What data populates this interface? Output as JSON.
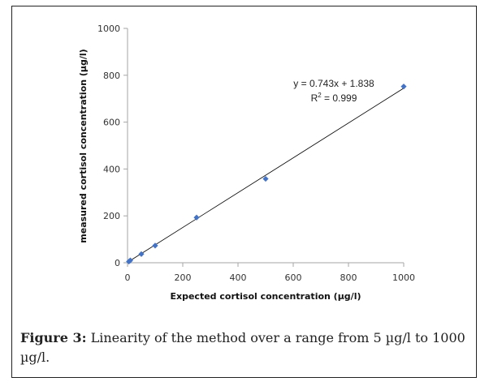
{
  "chart_data": {
    "type": "scatter",
    "title": "",
    "xlabel": "Expected cortisol concentration (µg/l)",
    "ylabel": "measured cortisol concentration (µg/l)",
    "xlim": [
      0,
      1000
    ],
    "ylim": [
      0,
      1000
    ],
    "xticks": [
      0,
      200,
      400,
      600,
      800,
      1000
    ],
    "yticks": [
      0,
      200,
      400,
      600,
      800,
      1000
    ],
    "grid": false,
    "legend": "none",
    "series": [
      {
        "name": "measured",
        "color": "#4472C4",
        "marker": "diamond",
        "points": [
          {
            "x": 5,
            "y": 5
          },
          {
            "x": 10,
            "y": 10
          },
          {
            "x": 50,
            "y": 37
          },
          {
            "x": 100,
            "y": 73
          },
          {
            "x": 250,
            "y": 193
          },
          {
            "x": 500,
            "y": 358
          },
          {
            "x": 1000,
            "y": 752
          }
        ]
      }
    ],
    "trendline": {
      "type": "linear",
      "slope": 0.743,
      "intercept": 1.838,
      "r_squared": 0.999,
      "color": "#000000"
    },
    "annotations": {
      "equation": "y = 0.743x + 1.838",
      "r2_prefix": "R",
      "r2_sup": "2",
      "r2_suffix": " = 0.999"
    }
  },
  "caption": {
    "label": "Figure 3:",
    "text": " Linearity of the method over a range from 5 µg/l to 1000 µg/l."
  }
}
